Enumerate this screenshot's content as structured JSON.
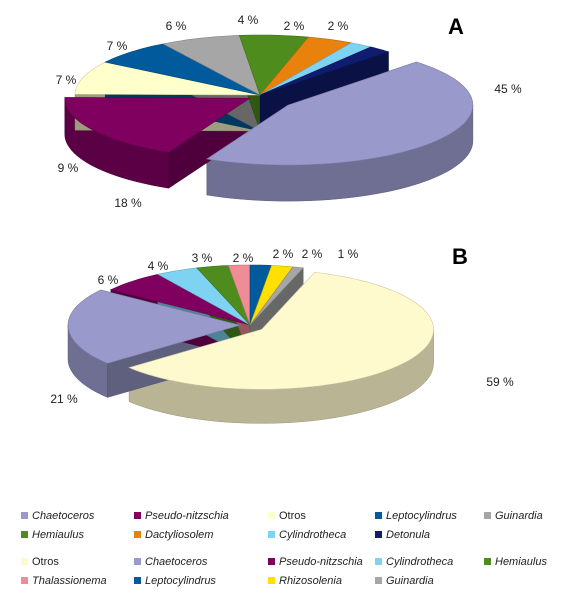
{
  "chart_data": [
    {
      "panel": "A",
      "type": "pie",
      "slices": [
        {
          "name": "Chaetoceros",
          "value": 45,
          "label": "45 %",
          "color": "#9A99CC"
        },
        {
          "name": "Pseudo-nitzschia",
          "value": 18,
          "label": "18 %",
          "color": "#800060"
        },
        {
          "name": "Otros",
          "value": 9,
          "label": "9 %",
          "color": "#FFFFCC"
        },
        {
          "name": "Leptocylindrus",
          "value": 7,
          "label": "7 %",
          "color": "#005A9C"
        },
        {
          "name": "Guinardia",
          "value": 7,
          "label": "7 %",
          "color": "#A6A6A6"
        },
        {
          "name": "Hemiaulus",
          "value": 6,
          "label": "6 %",
          "color": "#4E8C1E"
        },
        {
          "name": "Dactyliosolem",
          "value": 4,
          "label": "4 %",
          "color": "#E8820C"
        },
        {
          "name": "Cylindrotheca",
          "value": 2,
          "label": "2 %",
          "color": "#7ED3F2"
        },
        {
          "name": "Detonula",
          "value": 2,
          "label": "2 %",
          "color": "#101C6E"
        }
      ],
      "legend": [
        {
          "name": "Chaetoceros",
          "italic": true
        },
        {
          "name": "Pseudo-nitzschia",
          "italic": true
        },
        {
          "name": "Otros",
          "italic": false
        },
        {
          "name": "Leptocylindrus",
          "italic": true
        },
        {
          "name": "Guinardia",
          "italic": true
        },
        {
          "name": "Hemiaulus",
          "italic": true
        },
        {
          "name": "Dactyliosolem",
          "italic": true
        },
        {
          "name": "Cylindrotheca",
          "italic": true
        },
        {
          "name": "Detonula",
          "italic": true
        }
      ]
    },
    {
      "panel": "B",
      "type": "pie",
      "slices": [
        {
          "name": "Otros",
          "value": 59,
          "label": "59 %",
          "color": "#FFFACD"
        },
        {
          "name": "Chaetoceros",
          "value": 21,
          "label": "21 %",
          "color": "#9A99CC"
        },
        {
          "name": "Pseudo-nitzschia",
          "value": 6,
          "label": "6 %",
          "color": "#800060"
        },
        {
          "name": "Cylindrotheca",
          "value": 4,
          "label": "4 %",
          "color": "#7ED3F2"
        },
        {
          "name": "Hemiaulus",
          "value": 3,
          "label": "3 %",
          "color": "#4E8C1E"
        },
        {
          "name": "Thalassionema",
          "value": 2,
          "label": "2 %",
          "color": "#F08C96"
        },
        {
          "name": "Leptocylindrus",
          "value": 2,
          "label": "2 %",
          "color": "#005A9C"
        },
        {
          "name": "Rhizosolenia",
          "value": 2,
          "label": "2 %",
          "color": "#FFE000"
        },
        {
          "name": "Guinardia",
          "value": 1,
          "label": "1 %",
          "color": "#A6A6A6"
        }
      ],
      "legend": [
        {
          "name": "Otros",
          "italic": false
        },
        {
          "name": "Chaetoceros",
          "italic": true
        },
        {
          "name": "Pseudo-nitzschia",
          "italic": true
        },
        {
          "name": "Cylindrotheca",
          "italic": true
        },
        {
          "name": "Hemiaulus",
          "italic": true
        },
        {
          "name": "Thalassionema",
          "italic": true
        },
        {
          "name": "Leptocylindrus",
          "italic": true
        },
        {
          "name": "Rhizosolenia",
          "italic": true
        },
        {
          "name": "Guinardia",
          "italic": true
        }
      ]
    }
  ]
}
